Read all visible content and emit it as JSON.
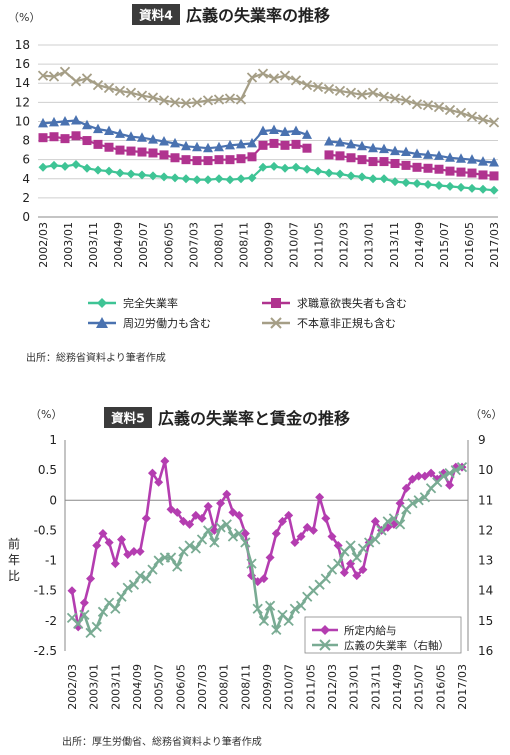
{
  "figures": [
    {
      "badge": "資料4",
      "title": "広義の失業率の推移",
      "y_unit": "（%）",
      "source": "出所：総務省資料より筆者作成"
    },
    {
      "badge": "資料5",
      "title": "広義の失業率と賃金の推移",
      "y_unit_left": "（%）",
      "y_unit_right": "（%）",
      "y_label_left": "前年比",
      "source": "出所：厚生労働省、総務省資料より筆者作成"
    }
  ],
  "chart_data": [
    {
      "type": "line",
      "title": "広義の失業率の推移",
      "ylabel": "（%）",
      "ylim": [
        0,
        18
      ],
      "yticks": [
        0,
        2,
        4,
        6,
        8,
        10,
        12,
        14,
        16,
        18
      ],
      "x_tick_labels": [
        "2002/03",
        "2003/01",
        "2003/11",
        "2004/09",
        "2005/07",
        "2006/05",
        "2007/03",
        "2008/01",
        "2008/11",
        "2009/09",
        "2010/07",
        "2011/05",
        "2012/03",
        "2013/01",
        "2013/11",
        "2014/09",
        "2015/07",
        "2016/05",
        "2017/03"
      ],
      "grid": true,
      "legend_position": "bottom",
      "series": [
        {
          "name": "完全失業率",
          "color": "#3ec495",
          "marker": "diamond",
          "values": [
            5.2,
            5.4,
            5.3,
            5.5,
            5.1,
            4.9,
            4.8,
            4.6,
            4.5,
            4.4,
            4.3,
            4.2,
            4.1,
            4.0,
            3.9,
            3.9,
            4.0,
            3.9,
            4.0,
            4.1,
            5.2,
            5.3,
            5.1,
            5.2,
            5.0,
            4.8,
            4.6,
            4.5,
            4.3,
            4.2,
            4.0,
            4.0,
            3.7,
            3.6,
            3.5,
            3.4,
            3.3,
            3.2,
            3.1,
            3.0,
            2.9,
            2.8
          ]
        },
        {
          "name": "求職意欲喪失者も含む",
          "color": "#b0338f",
          "marker": "square",
          "values": [
            8.3,
            8.4,
            8.2,
            8.5,
            8.0,
            7.6,
            7.3,
            7.0,
            6.9,
            6.8,
            6.7,
            6.5,
            6.2,
            6.0,
            5.9,
            5.9,
            6.0,
            6.0,
            6.1,
            6.3,
            7.5,
            7.7,
            7.5,
            7.6,
            7.2,
            null,
            6.5,
            6.4,
            6.2,
            6.0,
            5.8,
            5.8,
            5.6,
            5.4,
            5.2,
            5.1,
            5.0,
            4.8,
            4.7,
            4.6,
            4.4,
            4.3
          ]
        },
        {
          "name": "周辺労働力も含む",
          "color": "#4a72b0",
          "marker": "triangle",
          "values": [
            9.8,
            9.9,
            10.0,
            10.1,
            9.6,
            9.2,
            9.0,
            8.7,
            8.4,
            8.3,
            8.1,
            7.9,
            7.7,
            7.4,
            7.3,
            7.2,
            7.3,
            7.5,
            7.6,
            7.7,
            9.0,
            9.1,
            8.9,
            9.0,
            8.6,
            null,
            7.9,
            7.8,
            7.6,
            7.4,
            7.2,
            7.1,
            6.9,
            6.8,
            6.6,
            6.5,
            6.4,
            6.2,
            6.1,
            6.0,
            5.8,
            5.7
          ]
        },
        {
          "name": "不本意非正規も含む",
          "color": "#a59e86",
          "marker": "x",
          "values": [
            14.8,
            14.7,
            15.2,
            14.2,
            14.5,
            13.8,
            13.5,
            13.2,
            13.0,
            12.7,
            12.5,
            12.2,
            12.0,
            11.9,
            12.0,
            12.2,
            12.3,
            12.4,
            12.3,
            14.6,
            15.0,
            14.5,
            14.8,
            14.3,
            13.8,
            13.6,
            13.4,
            13.2,
            13.0,
            12.8,
            13.0,
            12.6,
            12.4,
            12.2,
            11.8,
            11.7,
            11.5,
            11.2,
            10.9,
            10.5,
            10.2,
            9.9
          ]
        }
      ]
    },
    {
      "type": "line",
      "title": "広義の失業率と賃金の推移",
      "ylabel_left": "前年比",
      "ylim_left": [
        -2.5,
        1
      ],
      "yticks_left": [
        1,
        0.5,
        0,
        -0.5,
        -1,
        -1.5,
        -2,
        -2.5
      ],
      "ylim_right": [
        9,
        16
      ],
      "yticks_right": [
        9,
        10,
        11,
        12,
        13,
        14,
        15,
        16
      ],
      "right_axis_inverted": true,
      "x_tick_labels": [
        "2002/03",
        "2003/01",
        "2003/11",
        "2004/09",
        "2005/07",
        "2006/05",
        "2007/03",
        "2008/01",
        "2008/11",
        "2009/09",
        "2010/07",
        "2011/05",
        "2012/03",
        "2013/01",
        "2013/11",
        "2014/09",
        "2015/07",
        "2016/05",
        "2017/03"
      ],
      "legend_position": "bottom-right",
      "series": [
        {
          "name": "所定内給与",
          "axis": "left",
          "color": "#b43db0",
          "marker": "diamond",
          "values": [
            -1.5,
            -2.1,
            -1.7,
            -1.3,
            -0.75,
            -0.55,
            -0.7,
            -1.05,
            -0.65,
            -0.9,
            -0.85,
            -0.85,
            -0.3,
            0.45,
            0.3,
            0.65,
            -0.15,
            -0.2,
            -0.35,
            -0.4,
            -0.25,
            -0.3,
            -0.1,
            -0.5,
            -0.05,
            0.1,
            -0.2,
            -0.25,
            -0.55,
            -1.25,
            -1.35,
            -1.3,
            -0.95,
            -0.55,
            -0.35,
            -0.25,
            -0.7,
            -0.6,
            -0.45,
            -0.5,
            0.05,
            -0.3,
            -0.6,
            -0.75,
            -1.2,
            -1.05,
            -1.25,
            -1.15,
            -0.7,
            -0.35,
            -0.5,
            -0.45,
            -0.4,
            -0.05,
            0.2,
            0.35,
            0.4,
            0.4,
            0.45,
            0.35,
            0.45,
            0.25,
            0.55,
            0.55
          ]
        },
        {
          "name": "広義の失業率（右軸）",
          "axis": "right",
          "color": "#79ab93",
          "marker": "x",
          "values": [
            14.9,
            15.1,
            14.8,
            15.4,
            15.2,
            14.7,
            14.4,
            14.6,
            14.2,
            13.9,
            13.8,
            13.5,
            13.6,
            13.3,
            13.0,
            12.9,
            12.9,
            13.2,
            12.7,
            12.5,
            12.6,
            12.3,
            12.0,
            12.4,
            11.9,
            11.8,
            12.2,
            12.1,
            12.4,
            13.1,
            14.6,
            15.0,
            14.5,
            15.3,
            14.8,
            15.0,
            14.6,
            14.5,
            14.2,
            14.0,
            13.8,
            13.6,
            13.3,
            13.1,
            12.7,
            12.5,
            12.9,
            12.6,
            12.4,
            12.3,
            12.0,
            11.7,
            11.6,
            11.8,
            11.3,
            11.1,
            11.0,
            10.9,
            10.6,
            10.4,
            10.2,
            10.1,
            10.0,
            9.9
          ]
        }
      ]
    }
  ]
}
